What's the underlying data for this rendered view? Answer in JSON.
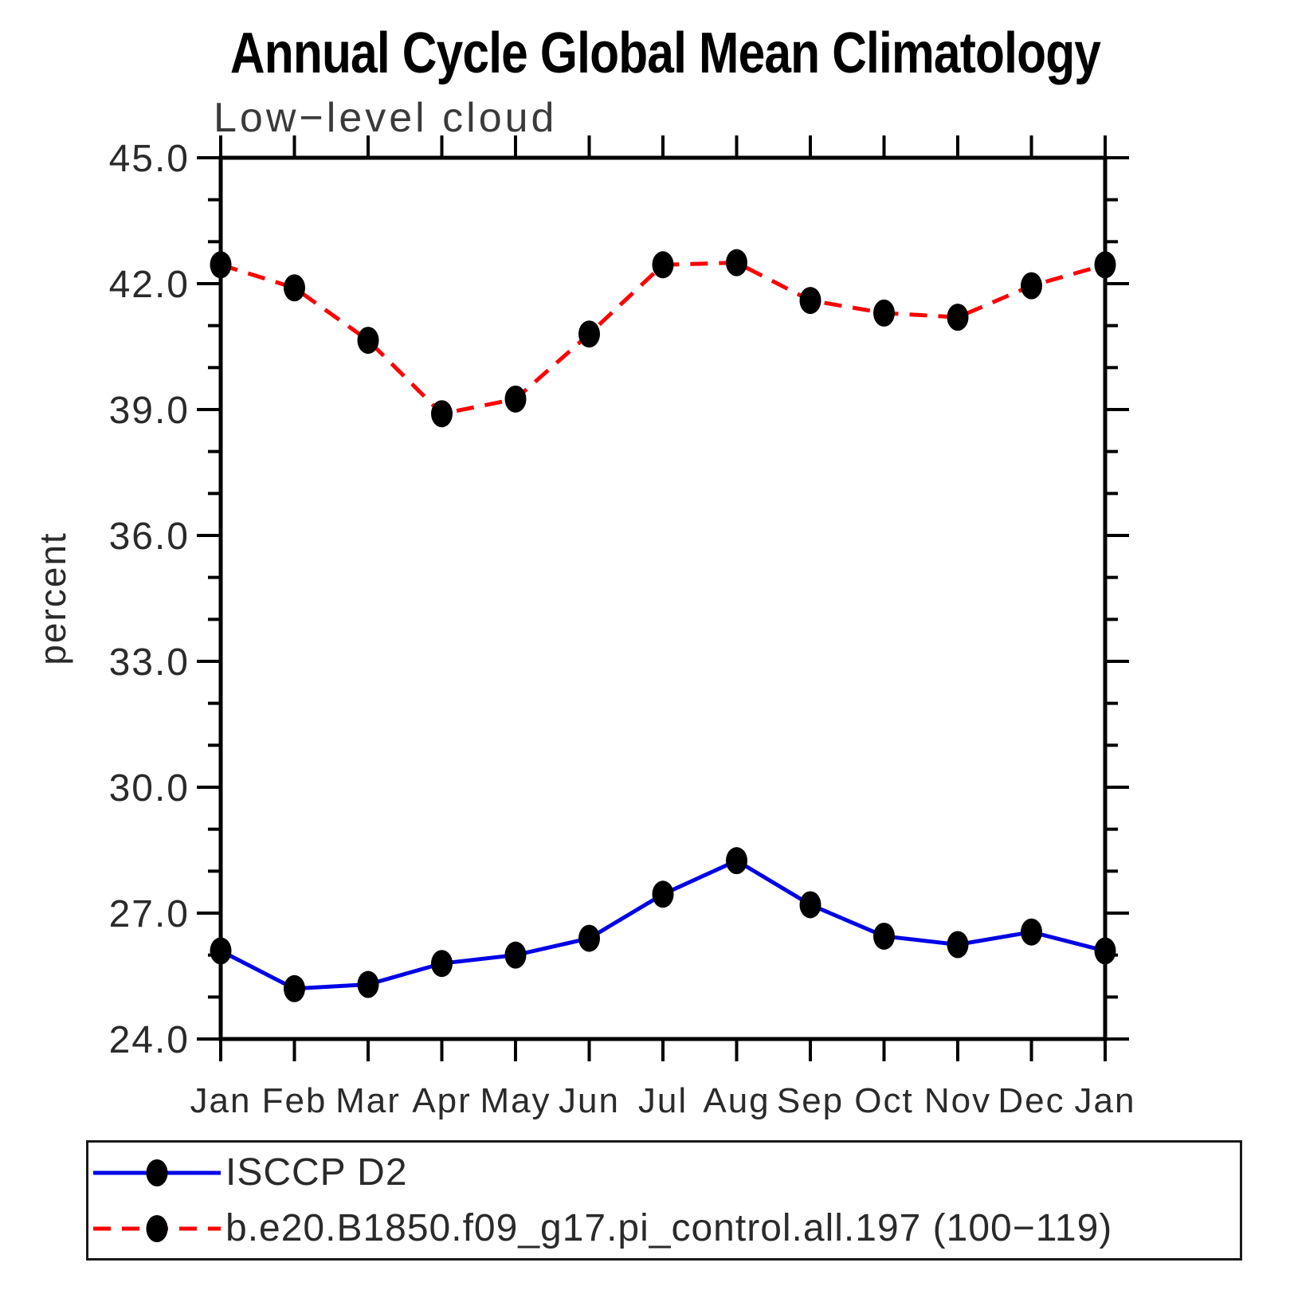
{
  "chart": {
    "title": "Annual Cycle Global Mean Climatology",
    "subtitle": "Low−level cloud",
    "ylabel": "percent"
  },
  "legend": {
    "items": [
      {
        "label": "ISCCP D2"
      },
      {
        "label": "b.e20.B1850.f09_g17.pi_control.all.197 (100−119)"
      }
    ]
  },
  "chart_data": {
    "type": "line",
    "title": "Annual Cycle Global Mean Climatology",
    "subtitle": "Low-level cloud",
    "xlabel": "",
    "ylabel": "percent",
    "ylim": [
      24.0,
      45.0
    ],
    "ytick_interval": 3.0,
    "yminor_interval": 1.0,
    "ytick_labels": [
      "45.0",
      "42.0",
      "39.0",
      "36.0",
      "33.0",
      "30.0",
      "27.0",
      "24.0"
    ],
    "grid": false,
    "legend_position": "bottom-box",
    "categories": [
      "Jan",
      "Feb",
      "Mar",
      "Apr",
      "May",
      "Jun",
      "Jul",
      "Aug",
      "Sep",
      "Oct",
      "Nov",
      "Dec",
      "Jan"
    ],
    "series": [
      {
        "name": "ISCCP D2",
        "line_style": "solid",
        "color": "#0000e6",
        "marker": "filled-circle",
        "marker_color": "#000000",
        "values": [
          26.1,
          25.2,
          25.3,
          25.8,
          26.0,
          26.4,
          27.45,
          28.25,
          27.2,
          26.45,
          26.25,
          26.55,
          26.1
        ]
      },
      {
        "name": "b.e20.B1850.f09_g17.pi_control.all.197 (100-119)",
        "line_style": "dashed",
        "color": "#fe0000",
        "marker": "filled-circle",
        "marker_color": "#000000",
        "values": [
          42.45,
          41.9,
          40.65,
          38.9,
          39.25,
          40.8,
          42.45,
          42.5,
          41.6,
          41.3,
          41.2,
          41.95,
          42.45
        ]
      }
    ],
    "axis_color": "#000000"
  }
}
